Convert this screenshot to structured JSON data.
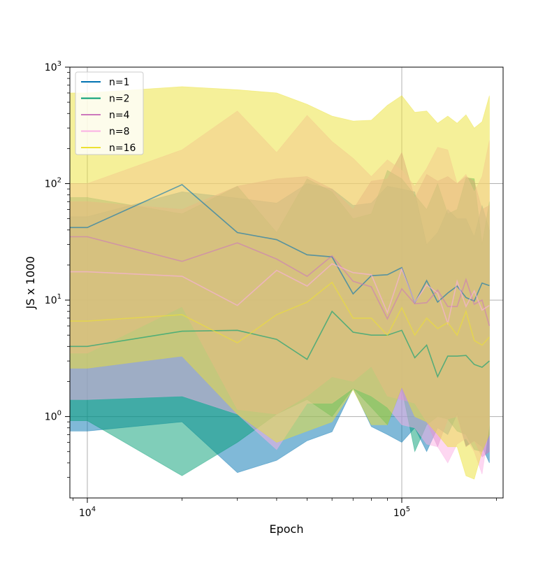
{
  "chart_data": {
    "type": "area",
    "title": "",
    "xlabel": "Epoch",
    "ylabel": "JS x 1000",
    "xscale": "log",
    "yscale": "log",
    "xlim": [
      8800,
      210000
    ],
    "ylim": [
      0.2,
      1000
    ],
    "grid": true,
    "legend": {
      "placement": "top-left"
    },
    "x_ticks": [
      {
        "value": 10000,
        "base": "10",
        "exp": "4"
      },
      {
        "value": 100000,
        "base": "10",
        "exp": "5"
      }
    ],
    "y_ticks": [
      {
        "value": 1,
        "base": "10",
        "exp": "0"
      },
      {
        "value": 10,
        "base": "10",
        "exp": "1"
      },
      {
        "value": 100,
        "base": "10",
        "exp": "2"
      },
      {
        "value": 1000,
        "base": "10",
        "exp": "3"
      }
    ],
    "x": [
      8800,
      10000,
      20000,
      30000,
      40000,
      50000,
      60000,
      70000,
      80000,
      90000,
      100000,
      110000,
      120000,
      130000,
      140000,
      150000,
      160000,
      170000,
      180000,
      190000
    ],
    "series": [
      {
        "name": "n=1",
        "color": "#0173b2",
        "mean": [
          42,
          42,
          98,
          38,
          33,
          24.5,
          23.5,
          11.3,
          16.2,
          16.5,
          19,
          9.5,
          14.7,
          9.6,
          11.5,
          13.2,
          10.5,
          9.8,
          14,
          13.3
        ],
        "lower": [
          0.75,
          0.75,
          0.9,
          0.33,
          0.42,
          0.62,
          0.74,
          1.75,
          0.82,
          0.7,
          0.6,
          0.8,
          0.5,
          0.8,
          0.7,
          1.05,
          0.56,
          0.62,
          0.55,
          0.4
        ],
        "upper": [
          52,
          52,
          85,
          75,
          68,
          100,
          90,
          65,
          68,
          95,
          90,
          85,
          30,
          38,
          60,
          50,
          50,
          35,
          65,
          40
        ]
      },
      {
        "name": "n=2",
        "color": "#029e73",
        "mean": [
          4.0,
          4.0,
          5.4,
          5.5,
          4.6,
          3.1,
          8.0,
          5.3,
          5.0,
          5.0,
          5.5,
          3.2,
          4.1,
          2.2,
          3.3,
          3.3,
          3.35,
          2.8,
          2.65,
          3.0
        ],
        "lower": [
          0.92,
          0.92,
          0.31,
          0.6,
          1.05,
          1.4,
          1.0,
          1.75,
          1.2,
          0.85,
          1.75,
          0.5,
          0.85,
          1.0,
          0.95,
          0.75,
          0.7,
          0.52,
          0.5,
          0.7
        ],
        "upper": [
          76,
          76,
          55,
          95,
          38,
          110,
          85,
          50,
          55,
          130,
          110,
          80,
          60,
          100,
          55,
          60,
          112,
          110,
          30,
          70
        ]
      },
      {
        "name": "n=4",
        "color": "#cc78bc",
        "mean": [
          35,
          35,
          21.5,
          31,
          22.5,
          16,
          24,
          14.5,
          13,
          6.9,
          12.5,
          9.3,
          9.5,
          12.2,
          8.8,
          8.8,
          15,
          9.2,
          10,
          6.0
        ],
        "lower": [
          3.5,
          3.5,
          8.8,
          1.15,
          1.05,
          1.5,
          2.2,
          2.0,
          2.7,
          1.5,
          1.4,
          1.3,
          0.9,
          0.55,
          0.95,
          1.0,
          0.55,
          0.62,
          0.45,
          0.5
        ],
        "upper": [
          70,
          70,
          60,
          95,
          110,
          115,
          90,
          60,
          105,
          110,
          185,
          75,
          120,
          105,
          115,
          100,
          115,
          105,
          60,
          65
        ]
      },
      {
        "name": "n=8",
        "color": "#fbafe4",
        "mean": [
          17.5,
          17.5,
          16,
          9,
          18,
          13.2,
          20.5,
          17.2,
          16.5,
          7.8,
          18.5,
          9.6,
          13.5,
          11.5,
          6.3,
          14.5,
          8.8,
          12,
          8.2,
          9.0
        ],
        "lower": [
          1.4,
          1.4,
          1.5,
          1.05,
          0.52,
          1.3,
          1.3,
          1.75,
          1.5,
          1.2,
          0.85,
          0.8,
          0.58,
          0.55,
          0.4,
          0.58,
          0.65,
          0.5,
          0.32,
          0.85
        ],
        "upper": [
          100,
          100,
          195,
          420,
          185,
          385,
          230,
          165,
          115,
          160,
          130,
          95,
          135,
          205,
          195,
          100,
          120,
          85,
          115,
          235
        ]
      },
      {
        "name": "n=16",
        "color": "#ece133",
        "mean": [
          6.6,
          6.6,
          7.5,
          4.3,
          7.5,
          9.6,
          14.2,
          7.0,
          7.0,
          5.0,
          8.6,
          5.0,
          7.0,
          5.7,
          6.4,
          5.0,
          8.0,
          4.5,
          4.1,
          4.8
        ],
        "lower": [
          2.6,
          2.6,
          3.3,
          1.05,
          0.6,
          0.75,
          0.9,
          1.7,
          0.85,
          0.85,
          1.8,
          1.0,
          0.9,
          0.7,
          0.55,
          0.55,
          0.31,
          0.29,
          0.5,
          0.7
        ],
        "upper": [
          600,
          600,
          680,
          640,
          600,
          480,
          380,
          345,
          350,
          470,
          570,
          410,
          420,
          330,
          380,
          330,
          390,
          300,
          340,
          570
        ]
      }
    ]
  }
}
